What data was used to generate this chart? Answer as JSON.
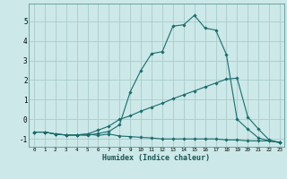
{
  "xlabel": "Humidex (Indice chaleur)",
  "background_color": "#cce8e8",
  "grid_color": "#aacccc",
  "line_color": "#1a6b6b",
  "xlim": [
    -0.5,
    23.4
  ],
  "ylim": [
    -1.4,
    5.9
  ],
  "yticks": [
    -1,
    0,
    1,
    2,
    3,
    4,
    5
  ],
  "xticks": [
    0,
    1,
    2,
    3,
    4,
    5,
    6,
    7,
    8,
    9,
    10,
    11,
    12,
    13,
    14,
    15,
    16,
    17,
    18,
    19,
    20,
    21,
    22,
    23
  ],
  "line1_x": [
    0,
    1,
    2,
    3,
    4,
    5,
    6,
    7,
    8,
    9,
    10,
    11,
    12,
    13,
    14,
    15,
    16,
    17,
    18,
    19,
    20,
    21,
    22,
    23
  ],
  "line1_y": [
    -0.65,
    -0.65,
    -0.75,
    -0.8,
    -0.8,
    -0.75,
    -0.82,
    -0.75,
    -0.85,
    -0.88,
    -0.92,
    -0.95,
    -1.0,
    -1.0,
    -1.0,
    -1.0,
    -1.0,
    -1.0,
    -1.05,
    -1.05,
    -1.1,
    -1.1,
    -1.1,
    -1.18
  ],
  "line2_x": [
    0,
    1,
    2,
    3,
    4,
    5,
    6,
    7,
    8,
    9,
    10,
    11,
    12,
    13,
    14,
    15,
    16,
    17,
    18,
    19,
    20,
    21,
    22,
    23
  ],
  "line2_y": [
    -0.65,
    -0.65,
    -0.75,
    -0.8,
    -0.8,
    -0.75,
    -0.55,
    -0.35,
    0.0,
    0.18,
    0.42,
    0.62,
    0.82,
    1.05,
    1.25,
    1.45,
    1.65,
    1.85,
    2.05,
    2.1,
    0.12,
    -0.5,
    -1.05,
    -1.18
  ],
  "line3_x": [
    0,
    1,
    2,
    3,
    4,
    5,
    6,
    7,
    8,
    9,
    10,
    11,
    12,
    13,
    14,
    15,
    16,
    17,
    18,
    19,
    20,
    21,
    22,
    23
  ],
  "line3_y": [
    -0.65,
    -0.65,
    -0.75,
    -0.8,
    -0.8,
    -0.82,
    -0.72,
    -0.62,
    -0.28,
    1.4,
    2.5,
    3.35,
    3.45,
    4.75,
    4.82,
    5.3,
    4.65,
    4.55,
    3.3,
    0.0,
    -0.5,
    -0.95,
    -1.1,
    -1.18
  ]
}
